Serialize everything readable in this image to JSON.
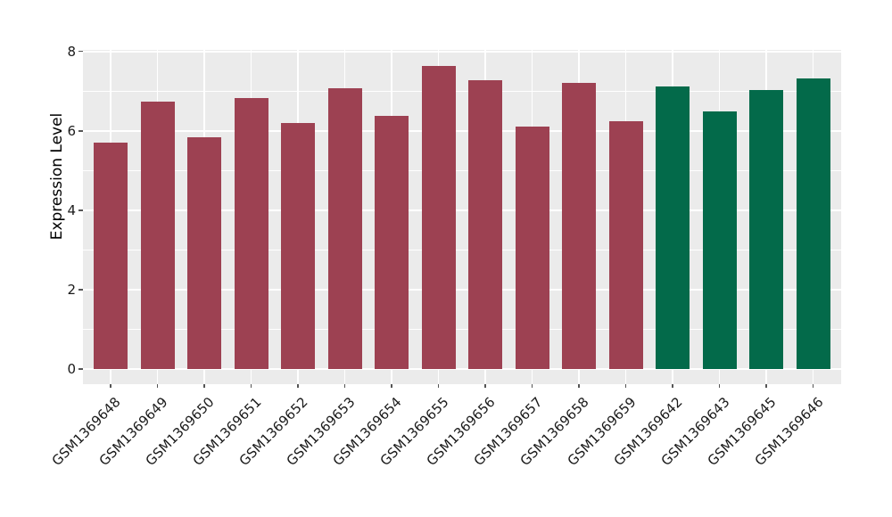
{
  "figure": {
    "background": "#ffffff",
    "plot_background": "#ebebeb",
    "grid_color": "#ffffff",
    "tick_color": "#555555",
    "text_color": "#1a1a1a"
  },
  "chart_data": {
    "type": "bar",
    "title": "",
    "xlabel": "",
    "ylabel": "Expression Level",
    "categories": [
      "GSM1369648",
      "GSM1369649",
      "GSM1369650",
      "GSM1369651",
      "GSM1369652",
      "GSM1369653",
      "GSM1369654",
      "GSM1369655",
      "GSM1369656",
      "GSM1369657",
      "GSM1369658",
      "GSM1369659",
      "GSM1369642",
      "GSM1369643",
      "GSM1369645",
      "GSM1369646"
    ],
    "values": [
      5.71,
      6.74,
      5.84,
      6.83,
      6.19,
      7.07,
      6.38,
      7.63,
      7.27,
      6.1,
      7.21,
      6.24,
      7.12,
      6.49,
      7.03,
      7.33
    ],
    "bar_colors": [
      "#9d4152",
      "#9d4152",
      "#9d4152",
      "#9d4152",
      "#9d4152",
      "#9d4152",
      "#9d4152",
      "#9d4152",
      "#9d4152",
      "#9d4152",
      "#9d4152",
      "#9d4152",
      "#036a4a",
      "#036a4a",
      "#036a4a",
      "#036a4a"
    ],
    "group_colors": {
      "first_group": "#9d4152",
      "second_group": "#036a4a"
    },
    "yticks": [
      0,
      2,
      4,
      6,
      8
    ],
    "minor_gridlines": [
      1,
      3,
      5,
      7
    ],
    "ylim": [
      -0.38,
      8.04
    ],
    "grid": true,
    "legend_position": "none"
  }
}
